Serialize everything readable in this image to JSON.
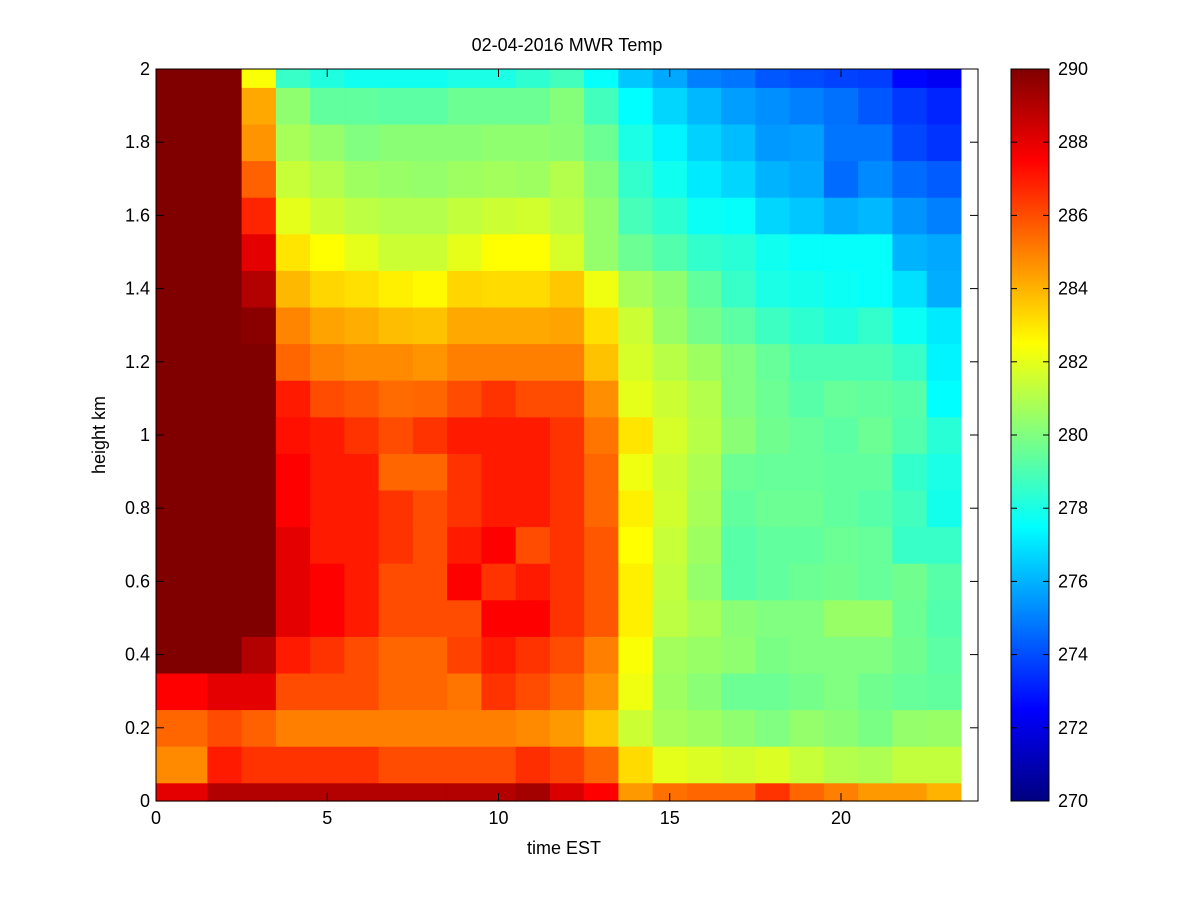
{
  "chart_data": {
    "type": "heatmap",
    "title": "02-04-2016 MWR Temp",
    "xlabel": "time EST",
    "ylabel": "height km",
    "xlim": [
      0,
      24
    ],
    "ylim": [
      0,
      2
    ],
    "x_ticks": [
      "0",
      "5",
      "10",
      "15",
      "20"
    ],
    "y_ticks": [
      "0",
      "0.2",
      "0.4",
      "0.6",
      "0.8",
      "1",
      "1.2",
      "1.4",
      "1.6",
      "1.8",
      "2"
    ],
    "colorbar": {
      "colormap": "jet",
      "range": [
        270,
        290
      ],
      "ticks": [
        "270",
        "272",
        "274",
        "276",
        "278",
        "280",
        "282",
        "284",
        "286",
        "288",
        "290"
      ]
    },
    "x_edges": [
      0,
      1.5,
      2.5,
      3.5,
      4.5,
      5.5,
      6.5,
      7.5,
      8.5,
      9.5,
      10.5,
      11.5,
      12.5,
      13.5,
      14.5,
      15.5,
      16.5,
      17.5,
      18.5,
      19.5,
      20.5,
      21.5,
      22.5,
      23.5
    ],
    "y_edges": [
      0,
      0.05,
      0.15,
      0.25,
      0.35,
      0.45,
      0.55,
      0.65,
      0.75,
      0.85,
      0.95,
      1.05,
      1.15,
      1.25,
      1.35,
      1.45,
      1.55,
      1.65,
      1.75,
      1.85,
      1.95,
      2.0
    ],
    "values": [
      [
        288.0,
        289.0,
        289.0,
        289.0,
        289.0,
        289.0,
        289.0,
        289.0,
        289.0,
        289.0,
        289.3,
        288.2,
        287.5,
        284.5,
        285.3,
        285.5,
        285.5,
        286.5,
        285.5,
        285.0,
        284.5,
        284.5,
        284.0
      ],
      [
        284.8,
        287.0,
        286.5,
        286.5,
        286.5,
        286.5,
        286.0,
        286.0,
        286.0,
        286.0,
        286.6,
        286.2,
        285.5,
        283.2,
        282.0,
        281.8,
        281.6,
        281.8,
        281.4,
        281.0,
        280.9,
        281.3,
        281.3
      ],
      [
        285.5,
        286.0,
        285.6,
        285.0,
        285.0,
        285.0,
        285.0,
        285.0,
        285.0,
        285.0,
        284.8,
        284.5,
        283.6,
        281.5,
        280.8,
        280.6,
        280.3,
        280.0,
        280.4,
        280.2,
        279.9,
        280.4,
        280.5
      ],
      [
        287.5,
        288.0,
        288.0,
        286.0,
        286.0,
        286.0,
        285.5,
        285.5,
        285.2,
        286.5,
        286.0,
        285.5,
        284.6,
        282.2,
        280.6,
        280.2,
        279.6,
        279.6,
        279.8,
        280.0,
        279.7,
        279.5,
        279.4
      ],
      [
        290.0,
        290.0,
        289.0,
        287.0,
        286.5,
        286.0,
        285.5,
        285.5,
        286.2,
        287.0,
        286.5,
        286.0,
        285.0,
        282.4,
        280.7,
        280.5,
        280.3,
        279.9,
        280.0,
        280.0,
        280.0,
        279.7,
        279.3
      ],
      [
        290.0,
        290.0,
        290.0,
        288.0,
        287.5,
        287.0,
        286.0,
        286.0,
        286.0,
        287.5,
        287.5,
        286.5,
        285.8,
        282.8,
        281.2,
        280.8,
        280.2,
        280.0,
        280.0,
        280.5,
        280.5,
        279.6,
        279.1
      ],
      [
        290.0,
        290.0,
        290.0,
        288.0,
        287.5,
        287.0,
        286.0,
        286.0,
        287.5,
        286.5,
        287.0,
        286.5,
        285.8,
        282.8,
        281.3,
        280.4,
        279.2,
        279.4,
        279.6,
        279.7,
        279.5,
        279.7,
        279.2
      ],
      [
        290.0,
        290.0,
        290.0,
        288.0,
        287.0,
        287.0,
        286.5,
        286.0,
        287.0,
        287.5,
        286.0,
        286.5,
        285.8,
        282.5,
        281.4,
        280.6,
        279.2,
        279.4,
        279.4,
        279.6,
        279.5,
        278.6,
        278.6
      ],
      [
        290.0,
        290.0,
        290.0,
        287.5,
        287.0,
        287.0,
        286.5,
        286.0,
        286.5,
        287.0,
        287.0,
        286.5,
        285.5,
        282.8,
        281.6,
        280.8,
        279.4,
        279.6,
        279.6,
        279.4,
        279.2,
        278.8,
        277.9
      ],
      [
        290.0,
        290.0,
        290.0,
        287.5,
        287.0,
        287.0,
        285.5,
        285.5,
        286.5,
        287.0,
        287.0,
        286.5,
        285.5,
        282.2,
        281.5,
        280.9,
        279.6,
        279.5,
        279.5,
        279.4,
        279.4,
        278.5,
        278.0
      ],
      [
        290.0,
        290.0,
        290.0,
        287.2,
        287.0,
        286.5,
        286.0,
        286.5,
        287.0,
        287.0,
        287.0,
        286.5,
        285.2,
        283.0,
        281.7,
        281.1,
        280.2,
        279.7,
        279.5,
        279.3,
        279.6,
        279.1,
        278.3
      ],
      [
        290.0,
        290.0,
        290.0,
        287.0,
        286.0,
        285.8,
        285.4,
        285.5,
        286.0,
        286.5,
        286.0,
        286.0,
        284.7,
        282.0,
        281.5,
        281.0,
        280.0,
        279.6,
        279.2,
        279.5,
        279.4,
        279.2,
        277.5
      ],
      [
        290.0,
        290.0,
        290.0,
        285.5,
        285.0,
        284.8,
        284.8,
        284.6,
        285.0,
        285.0,
        285.0,
        285.0,
        283.7,
        281.7,
        281.1,
        280.6,
        280.0,
        279.5,
        279.0,
        279.0,
        279.0,
        278.6,
        277.3
      ],
      [
        290.0,
        290.0,
        289.8,
        284.9,
        284.3,
        284.1,
        283.8,
        283.7,
        284.2,
        284.2,
        284.2,
        284.3,
        283.1,
        281.5,
        280.5,
        279.8,
        279.3,
        278.7,
        278.4,
        278.1,
        278.5,
        277.7,
        277.1
      ],
      [
        290.0,
        290.0,
        289.0,
        283.9,
        283.3,
        283.1,
        282.8,
        282.6,
        283.3,
        283.2,
        283.2,
        283.6,
        282.2,
        280.8,
        280.3,
        279.4,
        278.6,
        278.0,
        277.9,
        277.7,
        277.6,
        276.9,
        275.9
      ],
      [
        290.0,
        290.0,
        288.0,
        283.0,
        282.5,
        282.0,
        281.5,
        281.5,
        282.0,
        282.5,
        282.5,
        281.7,
        280.4,
        279.6,
        279.1,
        278.5,
        278.3,
        277.8,
        277.6,
        277.6,
        277.6,
        276.0,
        275.8
      ],
      [
        290.0,
        290.0,
        286.8,
        282.0,
        281.5,
        281.2,
        281.0,
        281.0,
        281.3,
        281.5,
        281.6,
        281.2,
        280.4,
        278.9,
        278.4,
        277.7,
        277.6,
        276.7,
        276.4,
        275.9,
        276.1,
        275.4,
        275.0
      ],
      [
        290.0,
        290.0,
        285.6,
        281.4,
        281.0,
        280.6,
        280.5,
        280.4,
        280.6,
        280.7,
        280.6,
        281.0,
        280.1,
        278.5,
        277.8,
        277.1,
        276.7,
        276.0,
        275.8,
        274.6,
        275.2,
        274.6,
        274.3
      ],
      [
        290.0,
        290.0,
        284.6,
        280.8,
        280.4,
        280.0,
        280.2,
        280.2,
        280.2,
        280.3,
        280.3,
        280.2,
        279.6,
        278.0,
        277.3,
        276.6,
        276.2,
        275.5,
        275.6,
        274.8,
        274.8,
        273.9,
        273.5
      ],
      [
        290.0,
        290.0,
        284.2,
        280.3,
        279.4,
        279.4,
        279.3,
        279.3,
        279.6,
        279.6,
        279.6,
        280.1,
        278.8,
        277.5,
        276.7,
        276.1,
        275.6,
        275.3,
        275.0,
        274.7,
        274.2,
        273.6,
        273.2
      ],
      [
        290.0,
        290.0,
        282.4,
        278.6,
        278.1,
        277.8,
        277.8,
        277.8,
        278.0,
        278.0,
        278.4,
        278.8,
        277.6,
        276.4,
        275.8,
        275.0,
        274.8,
        274.2,
        274.0,
        273.8,
        273.7,
        272.6,
        272.3
      ]
    ]
  }
}
